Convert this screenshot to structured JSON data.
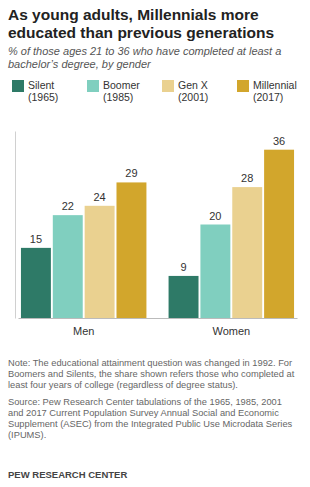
{
  "chart_data": {
    "type": "bar",
    "title": "As young adults, Millennials more educated than previous generations",
    "subtitle": "% of those ages 21 to 36 who have completed at least a bachelor’s degree, by gender",
    "categories": [
      "Men",
      "Women"
    ],
    "series": [
      {
        "name": "Silent (1965)",
        "color": "#2e7a67",
        "values": [
          15,
          9
        ]
      },
      {
        "name": "Boomer (1985)",
        "color": "#80cfbf",
        "values": [
          22,
          20
        ]
      },
      {
        "name": "Gen X (2001)",
        "color": "#ead190",
        "values": [
          24,
          28
        ]
      },
      {
        "name": "Millennial (2017)",
        "color": "#d2a62c",
        "values": [
          29,
          36
        ]
      }
    ],
    "ylim": [
      0,
      40
    ],
    "yticks": [
      0
    ],
    "grid": false,
    "legend": "top",
    "data_labels": true,
    "tick_labels": "x",
    "note": "Note: The educational attainment question was changed in 1992. For Boomers and Silents, the share shown refers those who completed at least four years of college (regardless of degree status).",
    "source": "Source: Pew Research Center tabulations of the 1965, 1985, 2001 and 2017 Current Population Survey Annual Social and Economic Supplement (ASEC) from the Integrated Public Use Microdata Series (IPUMS).",
    "credit": "PEW RESEARCH CENTER"
  }
}
